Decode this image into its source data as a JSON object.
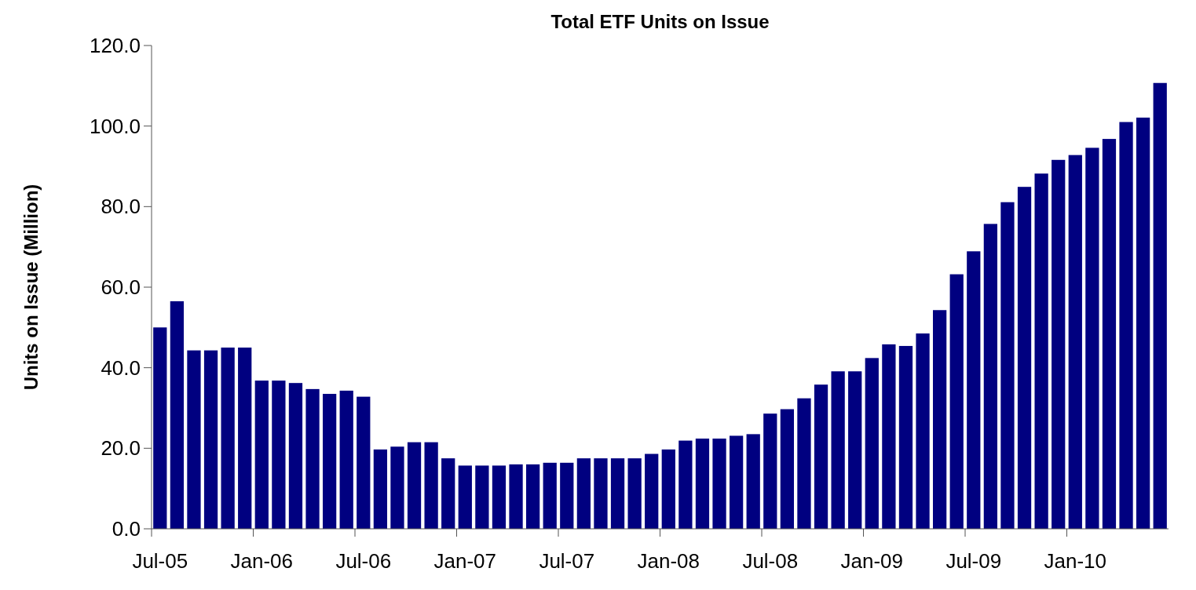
{
  "chart_data": {
    "type": "bar",
    "title": "Total ETF Units on Issue",
    "ylabel": "Units on Issue (Million)",
    "categories": [
      "Jul-05",
      null,
      null,
      null,
      null,
      null,
      "Jan-06",
      null,
      null,
      null,
      null,
      null,
      "Jul-06",
      null,
      null,
      null,
      null,
      null,
      "Jan-07",
      null,
      null,
      null,
      null,
      null,
      "Jul-07",
      null,
      null,
      null,
      null,
      null,
      "Jan-08",
      null,
      null,
      null,
      null,
      null,
      "Jul-08",
      null,
      null,
      null,
      null,
      null,
      "Jan-09",
      null,
      null,
      null,
      null,
      null,
      "Jul-09",
      null,
      null,
      null,
      null,
      null,
      "Jan-10",
      null,
      null,
      null,
      null,
      null
    ],
    "values": [
      50.0,
      56.5,
      44.3,
      44.3,
      45.0,
      45.0,
      36.8,
      36.8,
      36.2,
      34.7,
      33.5,
      34.3,
      32.8,
      19.7,
      20.4,
      21.5,
      21.5,
      17.5,
      15.7,
      15.7,
      15.7,
      16.0,
      16.0,
      16.4,
      16.4,
      17.5,
      17.5,
      17.5,
      17.5,
      18.6,
      19.7,
      21.9,
      22.4,
      22.4,
      23.1,
      23.5,
      28.6,
      29.7,
      32.4,
      35.8,
      39.1,
      39.1,
      42.4,
      45.8,
      45.4,
      48.5,
      54.3,
      63.2,
      68.9,
      75.7,
      81.1,
      84.9,
      88.2,
      91.6,
      92.8,
      94.6,
      96.8,
      101.0,
      102.1,
      110.7
    ],
    "color": "#000080",
    "ylim": [
      0,
      120
    ],
    "yticks": [
      {
        "value": 0,
        "label": "0.0"
      },
      {
        "value": 20,
        "label": "20.0"
      },
      {
        "value": 40,
        "label": "40.0"
      },
      {
        "value": 60,
        "label": "60.0"
      },
      {
        "value": 80,
        "label": "80.0"
      },
      {
        "value": 100,
        "label": "100.0"
      },
      {
        "value": 120,
        "label": "120.0"
      }
    ],
    "grid": false
  }
}
